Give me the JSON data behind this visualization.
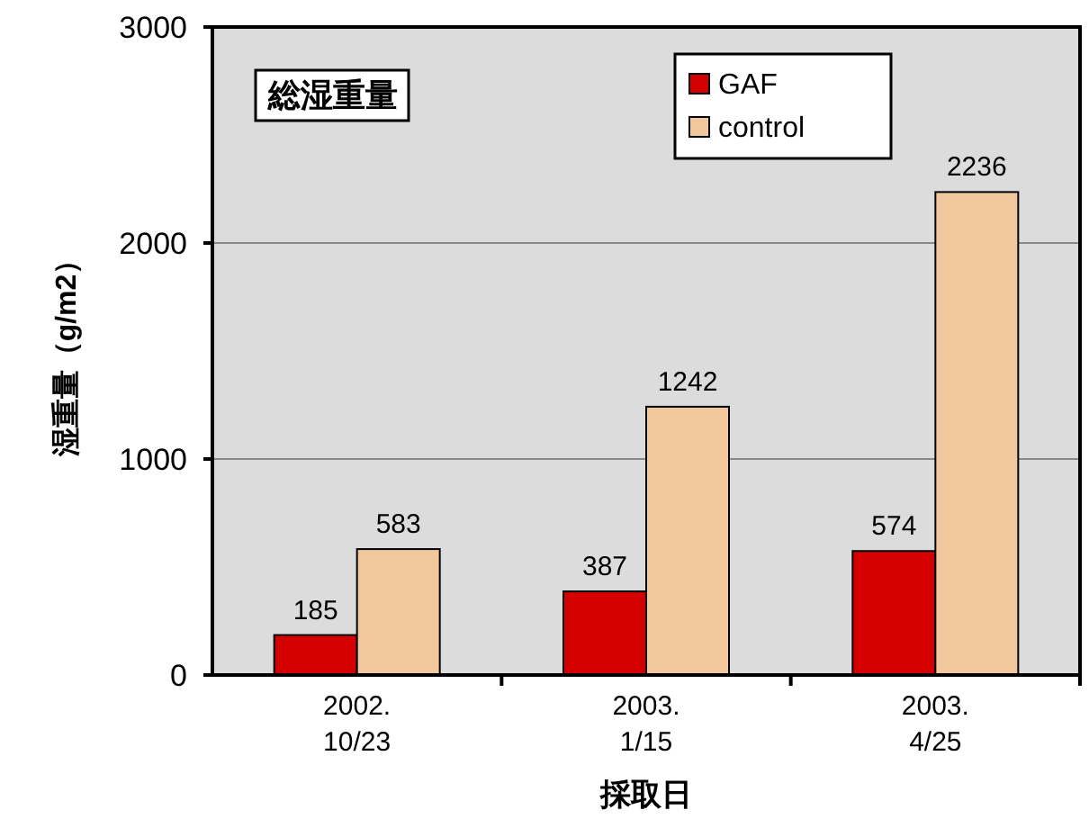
{
  "chart_data": {
    "type": "bar",
    "title": "総湿重量",
    "xlabel": "採取日",
    "ylabel": "湿重量（g/m2）",
    "categories": [
      "2002.\n10/23",
      "2003.\n1/15",
      "2003.\n4/25"
    ],
    "series": [
      {
        "name": "GAF",
        "color": "#d40000",
        "values": [
          185,
          387,
          574
        ]
      },
      {
        "name": "control",
        "color": "#f2c79b",
        "values": [
          583,
          1242,
          2236
        ]
      }
    ],
    "ylim": [
      0,
      3000
    ],
    "yticks": [
      0,
      1000,
      2000,
      3000
    ],
    "grid": "y",
    "legend": "top right",
    "data_labels": true
  }
}
